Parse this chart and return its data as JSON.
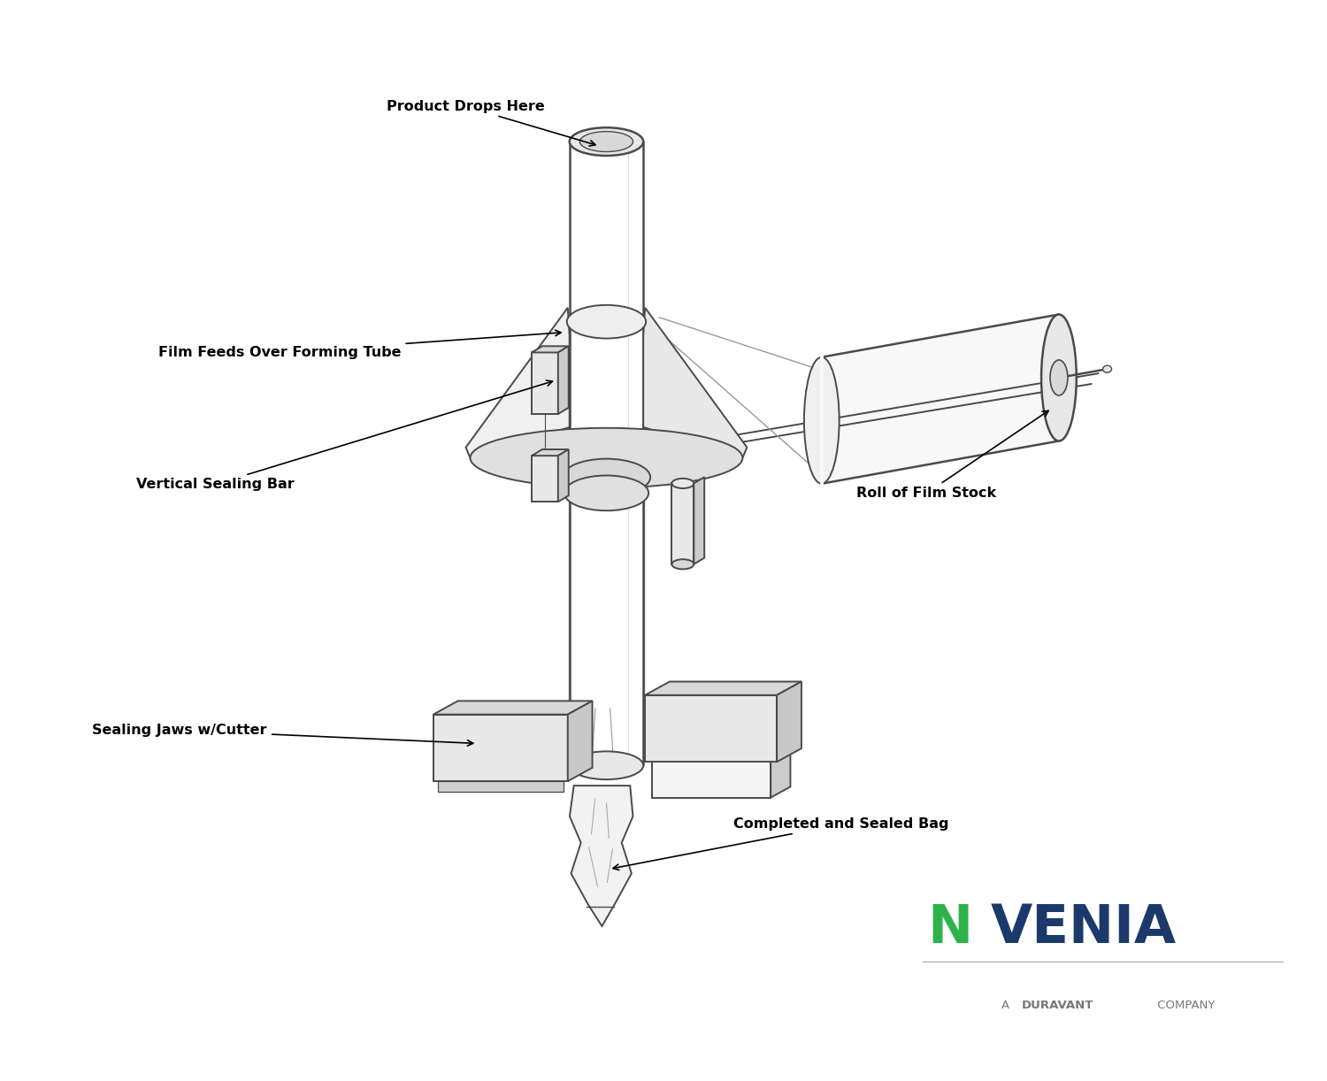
{
  "bg_color": "#ffffff",
  "line_color": "#4a4a4a",
  "label_color": "#000000",
  "fig_width": 15.0,
  "fig_height": 12.22,
  "labels": {
    "product_drops": "Product Drops Here",
    "film_feeds": "Film Feeds Over Forming Tube",
    "vertical_sealing": "Vertical Sealing Bar",
    "sealing_jaws": "Sealing Jaws w/Cutter",
    "roll_film": "Roll of Film Stock",
    "completed_bag": "Completed and Sealed Bag"
  },
  "nvenia_green": "#2db34a",
  "nvenia_blue": "#1b3a6b",
  "nvenia_gray": "#777777",
  "fill_light": "#f5f5f5",
  "fill_mid": "#e8e8e8",
  "fill_dark": "#d8d8d8"
}
